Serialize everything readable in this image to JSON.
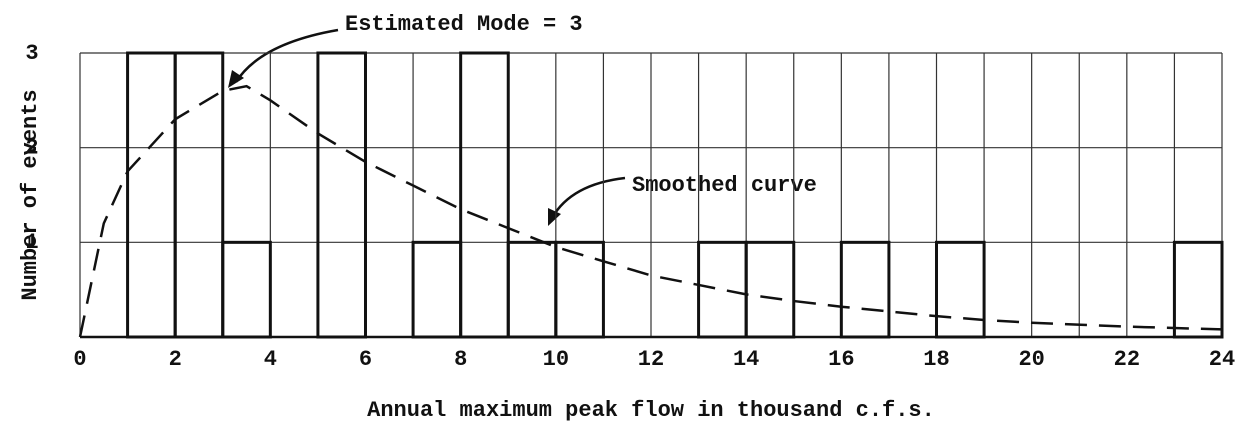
{
  "chart_data": {
    "type": "histogram",
    "bins": [
      0,
      1,
      2,
      3,
      4,
      5,
      6,
      7,
      8,
      9,
      10,
      11,
      12,
      13,
      14,
      15,
      16,
      17,
      18,
      19,
      20,
      21,
      22,
      23,
      24
    ],
    "values": [
      0,
      3,
      3,
      1,
      0,
      3,
      0,
      1,
      3,
      1,
      1,
      0,
      0,
      1,
      1,
      0,
      1,
      0,
      1,
      0,
      0,
      0,
      0,
      1
    ],
    "color": "#111",
    "curve": {
      "x": [
        0,
        0.5,
        1,
        2,
        3,
        3.5,
        4,
        5,
        6,
        7,
        8,
        9,
        10,
        11,
        12,
        13,
        14,
        15,
        16,
        17,
        18,
        19,
        20,
        22,
        24
      ],
      "y": [
        0,
        1.2,
        1.75,
        2.3,
        2.6,
        2.65,
        2.5,
        2.15,
        1.85,
        1.6,
        1.35,
        1.15,
        0.95,
        0.8,
        0.65,
        0.55,
        0.45,
        0.38,
        0.32,
        0.27,
        0.22,
        0.18,
        0.15,
        0.11,
        0.08
      ]
    },
    "xlim": [
      0,
      24
    ],
    "xticks": [
      0,
      2,
      4,
      6,
      8,
      10,
      12,
      14,
      16,
      18,
      20,
      22,
      24
    ],
    "ylim": [
      0,
      3
    ],
    "yticks": [
      1,
      2,
      3
    ],
    "grid": true,
    "xlabel": "Annual maximum peak flow in thousand c.f.s.",
    "ylabel": "Number of events",
    "annotations": [
      "Estimated Mode = 3",
      "Smoothed curve"
    ]
  }
}
